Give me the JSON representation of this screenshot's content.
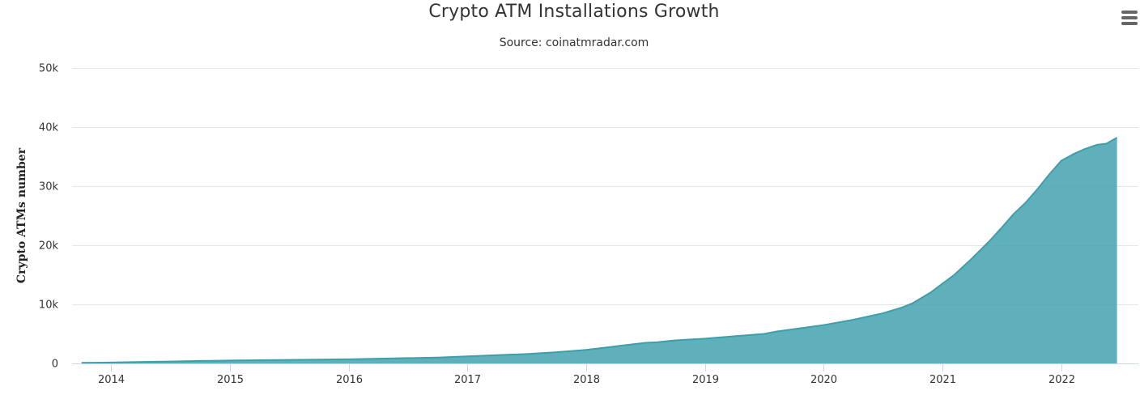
{
  "chart_data": {
    "type": "area",
    "title": "Crypto ATM Installations Growth",
    "subtitle": "Source: coinatmradar.com",
    "xlabel": "",
    "ylabel": "Crypto ATMs number",
    "ylim": [
      0,
      50000
    ],
    "y_ticks": [
      {
        "value": 0,
        "label": "0"
      },
      {
        "value": 10000,
        "label": "10k"
      },
      {
        "value": 20000,
        "label": "20k"
      },
      {
        "value": 30000,
        "label": "30k"
      },
      {
        "value": 40000,
        "label": "40k"
      },
      {
        "value": 50000,
        "label": "50k"
      }
    ],
    "x_ticks": [
      {
        "value": 2014,
        "label": "2014"
      },
      {
        "value": 2015,
        "label": "2015"
      },
      {
        "value": 2016,
        "label": "2016"
      },
      {
        "value": 2017,
        "label": "2017"
      },
      {
        "value": 2018,
        "label": "2018"
      },
      {
        "value": 2019,
        "label": "2019"
      },
      {
        "value": 2020,
        "label": "2020"
      },
      {
        "value": 2021,
        "label": "2021"
      },
      {
        "value": 2022,
        "label": "2022"
      }
    ],
    "xlim": [
      2013.67,
      2022.65
    ],
    "grid": true,
    "legend": false,
    "color": "#3c9fab",
    "series": [
      {
        "x": [
          2013.75,
          2014.0,
          2014.25,
          2014.5,
          2014.75,
          2015.0,
          2015.25,
          2015.5,
          2015.75,
          2016.0,
          2016.25,
          2016.5,
          2016.75,
          2017.0,
          2017.25,
          2017.5,
          2017.75,
          2018.0,
          2018.25,
          2018.5,
          2018.6,
          2018.75,
          2019.0,
          2019.25,
          2019.5,
          2019.6,
          2019.75,
          2020.0,
          2020.25,
          2020.5,
          2020.65,
          2020.75,
          2020.9,
          2021.0,
          2021.1,
          2021.25,
          2021.4,
          2021.5,
          2021.6,
          2021.7,
          2021.8,
          2021.9,
          2022.0,
          2022.1,
          2022.2,
          2022.3,
          2022.38,
          2022.47
        ],
        "y": [
          100,
          150,
          250,
          320,
          420,
          500,
          550,
          600,
          650,
          700,
          800,
          900,
          1000,
          1200,
          1400,
          1600,
          1900,
          2300,
          2900,
          3500,
          3600,
          3900,
          4200,
          4600,
          5000,
          5400,
          5800,
          6500,
          7400,
          8500,
          9400,
          10200,
          12000,
          13500,
          15000,
          17800,
          20800,
          23000,
          25300,
          27200,
          29500,
          32000,
          34300,
          35400,
          36300,
          37000,
          37200,
          38200
        ]
      }
    ]
  }
}
